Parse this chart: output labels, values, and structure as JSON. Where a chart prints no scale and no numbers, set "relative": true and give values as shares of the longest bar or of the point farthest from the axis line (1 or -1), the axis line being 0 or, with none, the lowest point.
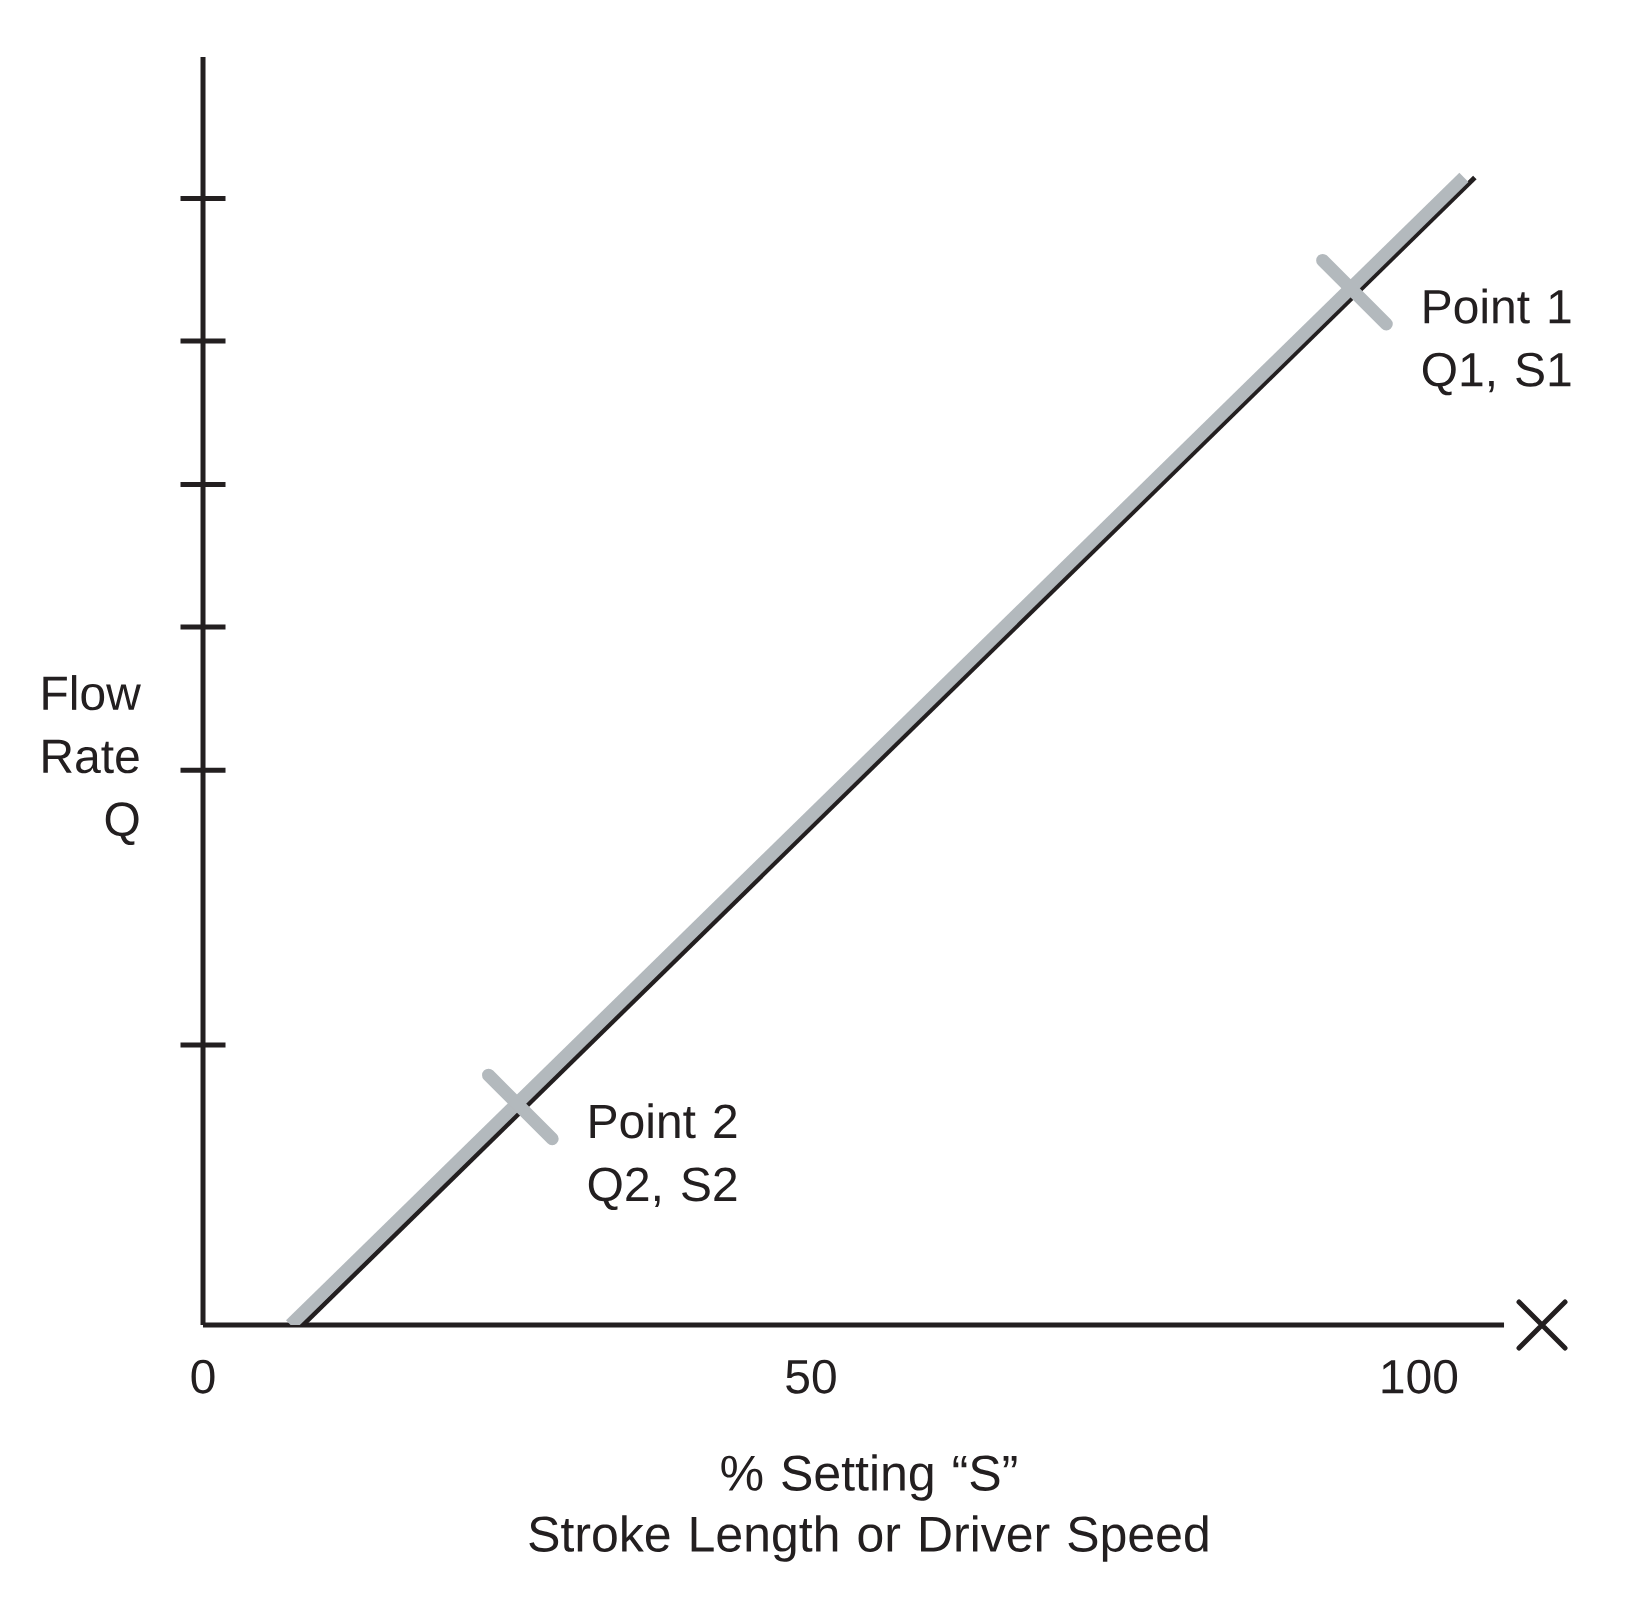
{
  "chart_data": {
    "type": "line",
    "relative": true,
    "xlabel": "% Setting “S” Stroke Length or Driver Speed",
    "ylabel": "Flow Rate Q",
    "series": [
      {
        "color": "#231f20",
        "x": [
          8.2,
          104.6
        ],
        "values": [
          0,
          1
        ]
      },
      {
        "color": "#b3b9bd",
        "x": [
          7.2,
          103.7
        ],
        "values": [
          0,
          1
        ]
      }
    ],
    "xlim": [
      0,
      107
    ],
    "xticks": [
      0,
      50,
      100
    ],
    "tick_labels": "x",
    "annotations": [
      {
        "text": "Point 1 Q1, S1",
        "x": 94.7,
        "y": 0.9
      },
      {
        "text": "Point 2 Q2, S2",
        "x": 26.1,
        "y": 0.19
      }
    ]
  }
}
